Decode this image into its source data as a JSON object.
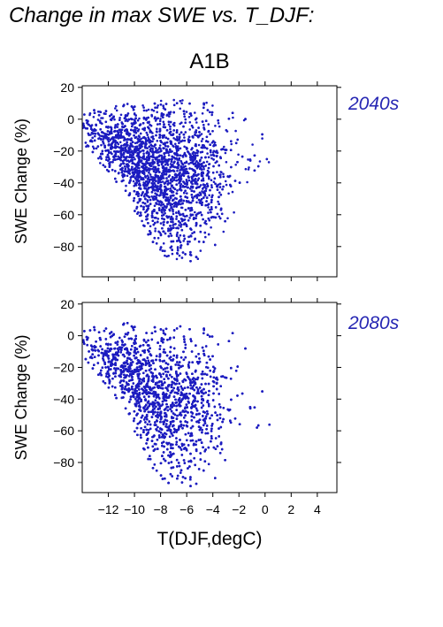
{
  "header": {
    "title": "Change in max SWE vs. T_DJF:",
    "scenario": "A1B"
  },
  "colors": {
    "points": "#1c1cc0",
    "period_label": "#2626b3",
    "axes": "#000000"
  },
  "chart_data": [
    {
      "type": "scatter",
      "period_label": "2040s",
      "ylabel": "SWE Change (%)",
      "xlabel": "",
      "xlim": [
        -14,
        5.5
      ],
      "ylim": [
        -99,
        21
      ],
      "xticks": [
        -12,
        -10,
        -8,
        -6,
        -4,
        -2,
        0,
        2,
        4
      ],
      "yticks": [
        20,
        0,
        -20,
        -40,
        -60,
        -80
      ],
      "ytick_labels": [
        "20",
        "0",
        "−20",
        "−40",
        "−60",
        "−80"
      ],
      "x_tick_labels_shown": false,
      "grid": false,
      "legend": "none",
      "cloud": {
        "n": 4200,
        "x_range": [
          -14,
          0.3
        ],
        "upper_edge_at_x": [
          [
            -14,
            5
          ],
          [
            -8,
            13
          ],
          [
            -5,
            12
          ],
          [
            -3,
            8
          ],
          [
            0,
            1
          ]
        ],
        "lower_edge_at_x": [
          [
            -14,
            -15
          ],
          [
            -11,
            -45
          ],
          [
            -8,
            -85
          ],
          [
            -6,
            -92
          ],
          [
            -4,
            -83
          ],
          [
            -2,
            -60
          ],
          [
            0,
            -45
          ]
        ]
      }
    },
    {
      "type": "scatter",
      "period_label": "2080s",
      "ylabel": "SWE Change (%)",
      "xlabel": "T(DJF,degC)",
      "xlim": [
        -14,
        5.5
      ],
      "ylim": [
        -99,
        21
      ],
      "xticks": [
        -12,
        -10,
        -8,
        -6,
        -4,
        -2,
        0,
        2,
        4
      ],
      "xtick_labels": [
        "−12",
        "−10",
        "−8",
        "−6",
        "−4",
        "−2",
        "0",
        "2",
        "4"
      ],
      "yticks": [
        20,
        0,
        -20,
        -40,
        -60,
        -80
      ],
      "ytick_labels": [
        "20",
        "0",
        "−20",
        "−40",
        "−60",
        "−80"
      ],
      "x_tick_labels_shown": true,
      "grid": false,
      "legend": "none",
      "cloud": {
        "n": 4200,
        "x_range": [
          -14,
          0.5
        ],
        "upper_edge_at_x": [
          [
            -14,
            5
          ],
          [
            -11,
            8
          ],
          [
            -8,
            8
          ],
          [
            -5,
            6
          ],
          [
            -2,
            5
          ],
          [
            0,
            -25
          ]
        ],
        "lower_edge_at_x": [
          [
            -14,
            -15
          ],
          [
            -11,
            -45
          ],
          [
            -8,
            -93
          ],
          [
            -6,
            -97
          ],
          [
            -4,
            -93
          ],
          [
            -2,
            -82
          ],
          [
            0,
            -80
          ]
        ]
      }
    }
  ]
}
